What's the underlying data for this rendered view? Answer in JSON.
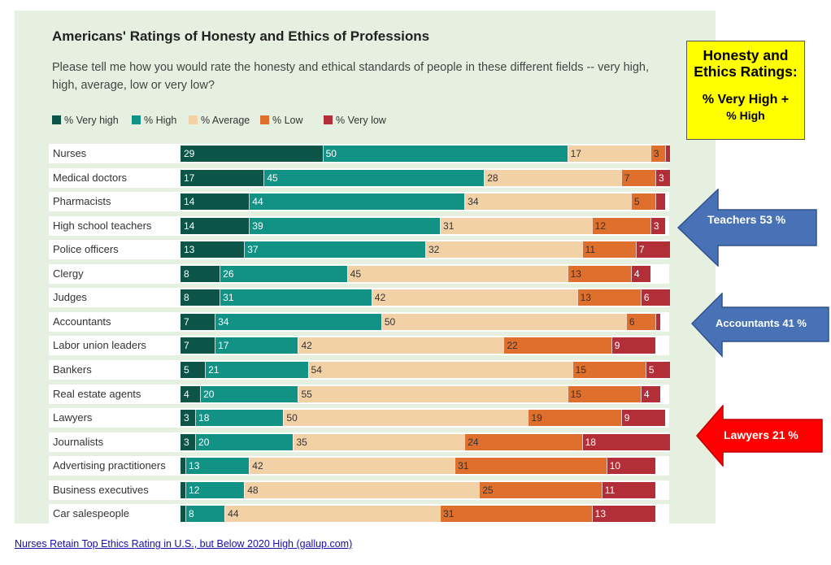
{
  "colors": {
    "very_high": "#0b5447",
    "high": "#129284",
    "average": "#f3d1a6",
    "low": "#de6f2d",
    "very_low": "#b22f38",
    "panel_bg": "#e6f0e1",
    "callout_bg": "#ffff00",
    "arrow_blue": "#4872b5",
    "arrow_red": "#ff0000"
  },
  "chart_data": {
    "type": "bar",
    "orientation": "horizontal-stacked",
    "title": "Americans' Ratings of Honesty and Ethics of Professions",
    "subtitle": "Please tell me how you would rate the honesty and ethical standards of people in these different fields -- very high, high, average, low or very low?",
    "legend_position": "top-left",
    "categories": [
      "Nurses",
      "Medical doctors",
      "Pharmacists",
      "High school teachers",
      "Police officers",
      "Clergy",
      "Judges",
      "Accountants",
      "Labor union leaders",
      "Bankers",
      "Real estate agents",
      "Lawyers",
      "Journalists",
      "Advertising practitioners",
      "Business executives",
      "Car salespeople"
    ],
    "series": [
      {
        "name": "% Very high",
        "key": "very_high",
        "values": [
          29,
          17,
          14,
          14,
          13,
          8,
          8,
          7,
          7,
          5,
          4,
          3,
          3,
          1,
          1,
          1
        ]
      },
      {
        "name": "% High",
        "key": "high",
        "values": [
          50,
          45,
          44,
          39,
          37,
          26,
          31,
          34,
          17,
          21,
          20,
          18,
          20,
          13,
          12,
          8
        ]
      },
      {
        "name": "% Average",
        "key": "average",
        "values": [
          17,
          28,
          34,
          31,
          32,
          45,
          42,
          50,
          42,
          54,
          55,
          50,
          35,
          42,
          48,
          44
        ]
      },
      {
        "name": "% Low",
        "key": "low",
        "values": [
          3,
          7,
          5,
          12,
          11,
          13,
          13,
          6,
          22,
          15,
          15,
          19,
          24,
          31,
          25,
          31
        ]
      },
      {
        "name": "% Very low",
        "key": "very_low",
        "values": [
          1,
          3,
          2,
          3,
          7,
          4,
          6,
          1,
          9,
          5,
          4,
          9,
          18,
          10,
          11,
          13
        ]
      }
    ],
    "labels_shown": [
      [
        true,
        true,
        true,
        true,
        false
      ],
      [
        true,
        true,
        true,
        true,
        true
      ],
      [
        true,
        true,
        true,
        true,
        false
      ],
      [
        true,
        true,
        true,
        true,
        true
      ],
      [
        true,
        true,
        true,
        true,
        true
      ],
      [
        true,
        true,
        true,
        true,
        true
      ],
      [
        true,
        true,
        true,
        true,
        true
      ],
      [
        true,
        true,
        true,
        true,
        false
      ],
      [
        true,
        true,
        true,
        true,
        true
      ],
      [
        true,
        true,
        true,
        true,
        true
      ],
      [
        true,
        true,
        true,
        true,
        true
      ],
      [
        true,
        true,
        true,
        true,
        true
      ],
      [
        true,
        true,
        true,
        true,
        true
      ],
      [
        false,
        true,
        true,
        true,
        true
      ],
      [
        false,
        true,
        true,
        true,
        true
      ],
      [
        false,
        true,
        true,
        true,
        true
      ]
    ]
  },
  "callout": {
    "line1": "Honesty and",
    "line2": "Ethics Ratings:",
    "line3": "% Very High +",
    "line4": "% High"
  },
  "arrows": [
    {
      "label": "Teachers  53 %",
      "color_key": "arrow_blue"
    },
    {
      "label": "Accountants 41 %",
      "color_key": "arrow_blue"
    },
    {
      "label": "Lawyers 21 %",
      "color_key": "arrow_red"
    }
  ],
  "source_link": "Nurses Retain Top Ethics Rating in U.S., but Below 2020 High (gallup.com)"
}
